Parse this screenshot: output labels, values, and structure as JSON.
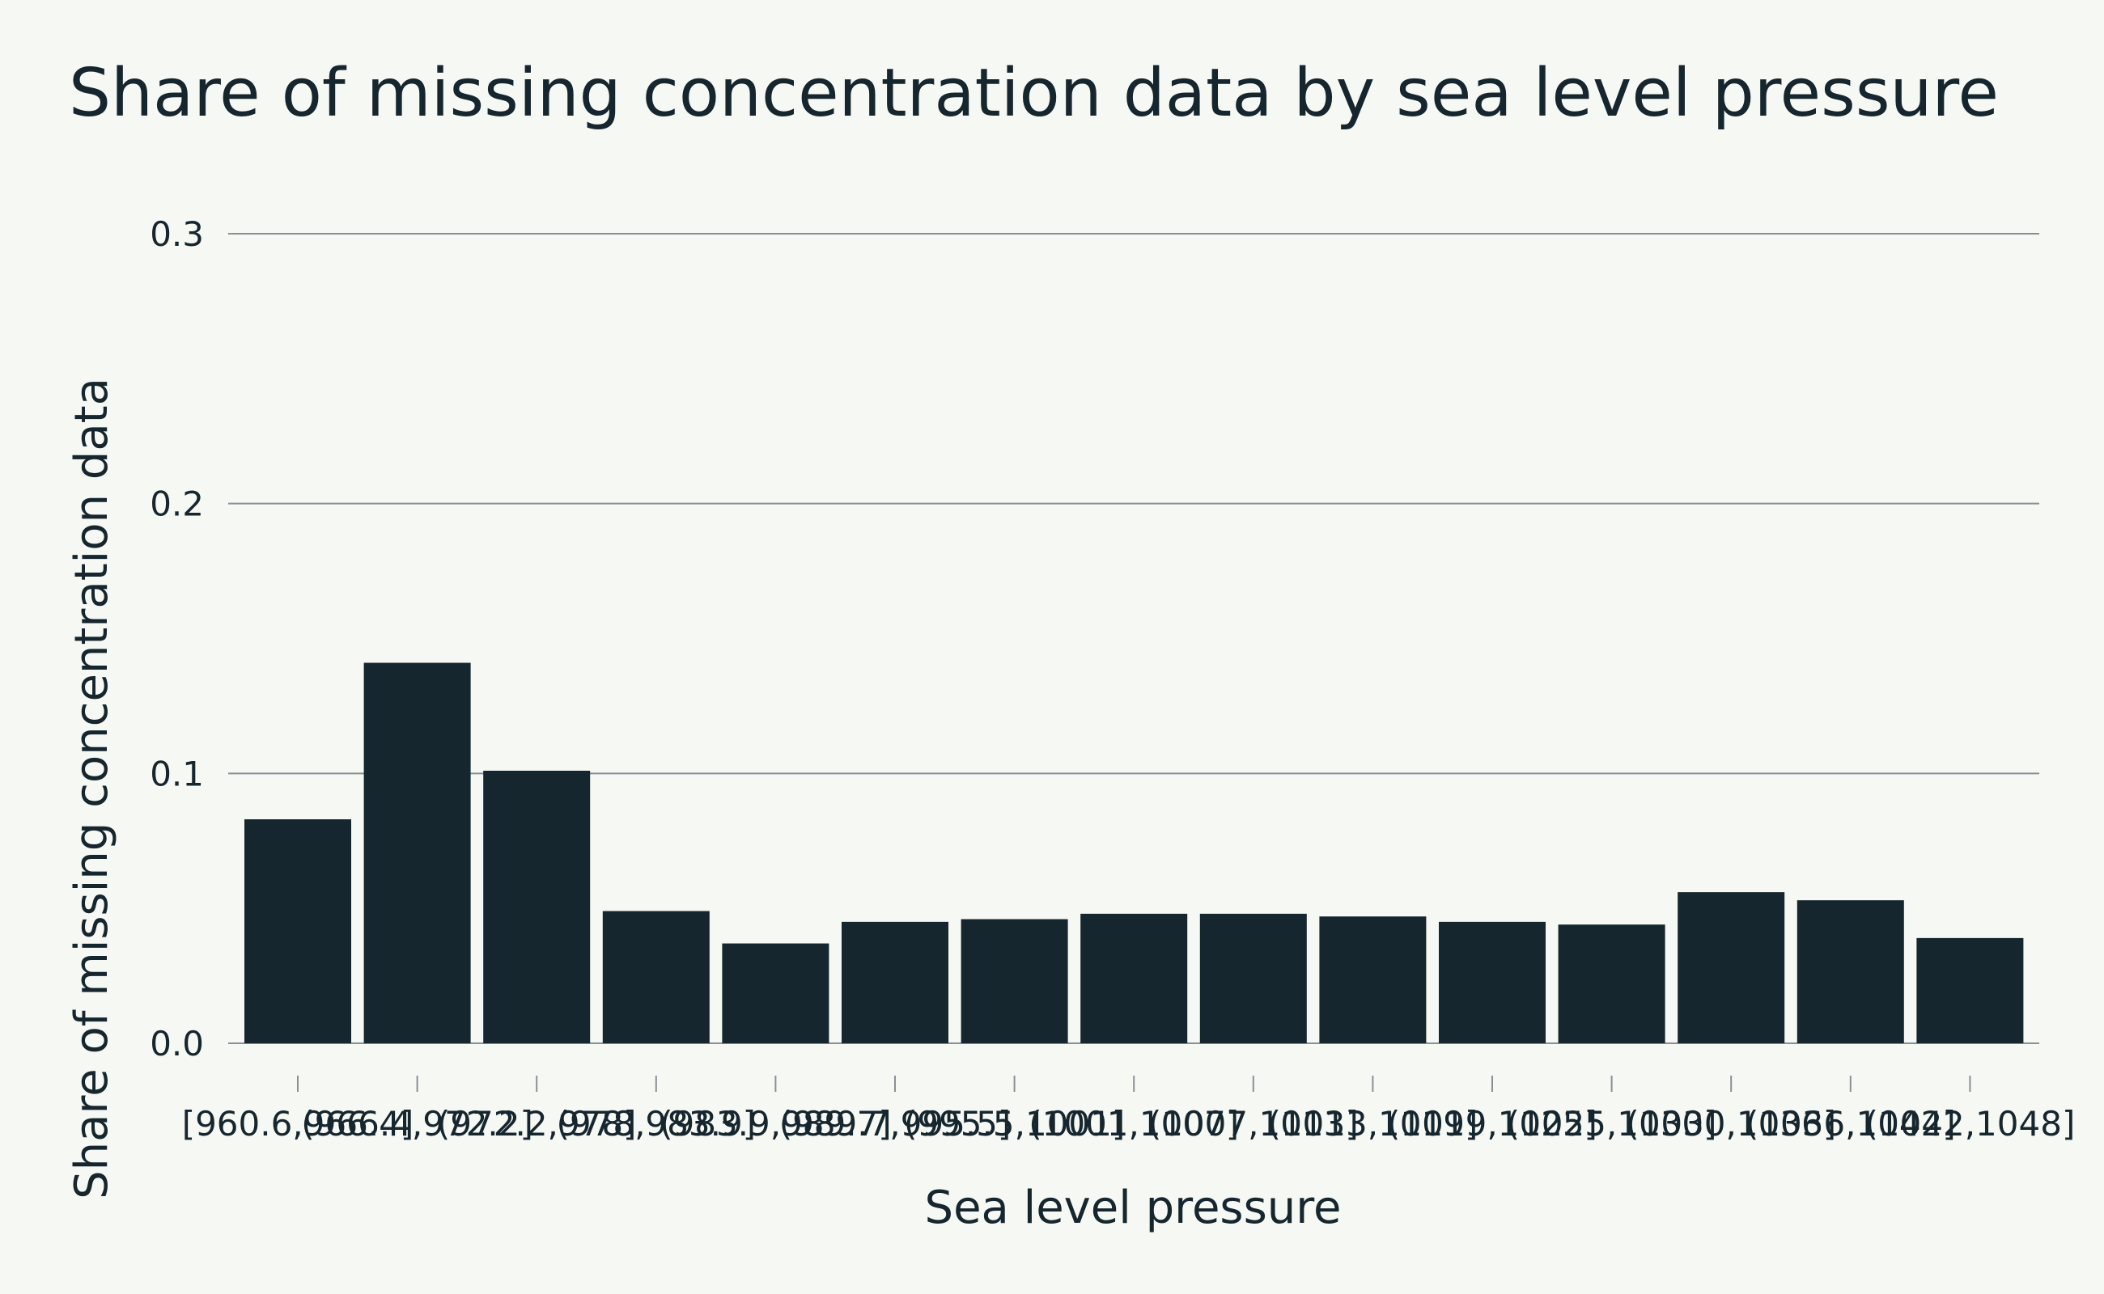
{
  "chart_data": {
    "type": "bar",
    "title": "Share of missing concentration data by sea level pressure",
    "xlabel": "Sea level pressure",
    "ylabel": "Share of missing concentration data",
    "ylim": [
      0,
      0.3
    ],
    "yticks": [
      "0.0",
      "0.1",
      "0.2",
      "0.3"
    ],
    "grid": true,
    "categories": [
      "[960.6,966.4]",
      "(966.4,972.2]",
      "(972.2,978]",
      "(978,983.9]",
      "(983.9,989.7]",
      "(989.7,995.5]",
      "(995.5,1001]",
      "(1001,1007]",
      "(1007,1013]",
      "(1013,1019]",
      "(1019,1025]",
      "(1025,1030]",
      "(1030,1036]",
      "(1036,1042]",
      "(1042,1048]"
    ],
    "values": [
      0.083,
      0.141,
      0.101,
      0.049,
      0.037,
      0.045,
      0.046,
      0.048,
      0.048,
      0.047,
      0.045,
      0.044,
      0.056,
      0.053,
      0.039
    ],
    "colors": {
      "bar": "#16262e",
      "grid": "#8a8f96",
      "text": "#16262e",
      "background": "#f6f8f4"
    }
  }
}
